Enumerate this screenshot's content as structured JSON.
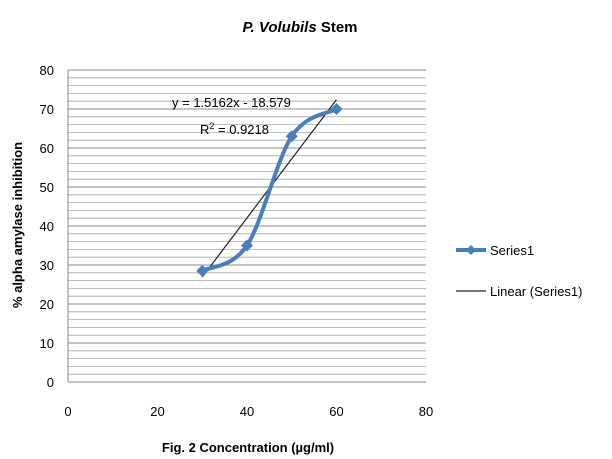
{
  "chart_data": {
    "type": "line",
    "title_italic": "P. Volubils",
    "title_rest": " Stem",
    "xlabel": "Fig. 2 Concentration (µg/ml)",
    "ylabel": "% alpha amylase inhibition",
    "xlim": [
      0,
      80
    ],
    "ylim": [
      0,
      80
    ],
    "x_ticks": [
      0,
      20,
      40,
      60,
      80
    ],
    "y_ticks": [
      0,
      10,
      20,
      30,
      40,
      50,
      60,
      70,
      80
    ],
    "grid": "horizontal minor lines",
    "legend_position": "right",
    "series": [
      {
        "name": "Series1",
        "style": "smoothed line with diamond markers",
        "color": "#4a7ebb",
        "x": [
          30,
          40,
          50,
          60
        ],
        "y": [
          28.5,
          35,
          63,
          70
        ]
      }
    ],
    "trendline": {
      "name": "Linear (Series1)",
      "color": "#000000",
      "slope": 1.5162,
      "intercept": -18.579,
      "x_range": [
        30,
        60
      ]
    },
    "annotations": {
      "equation": "y = 1.5162x - 18.579",
      "r2_prefix": "R",
      "r2_suffix": " = 0.9218"
    }
  }
}
